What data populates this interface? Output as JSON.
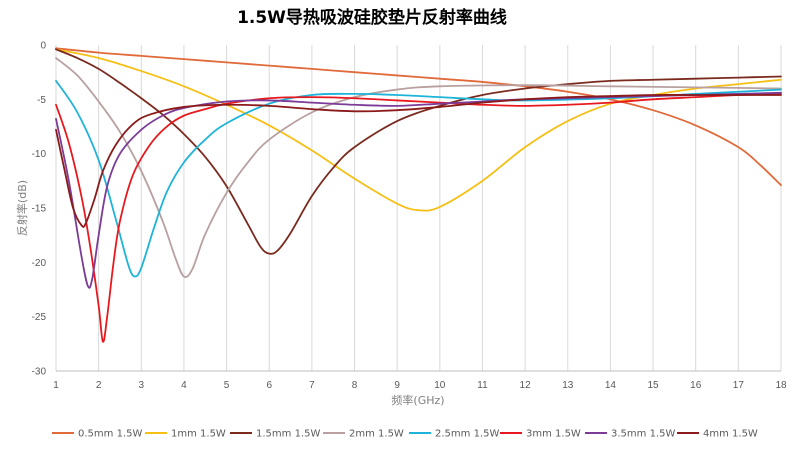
{
  "chart_data": {
    "type": "line",
    "title": "1.5W导热吸波硅胶垫片反射率曲线",
    "xlabel": "频率(GHz)",
    "ylabel": "反射率(dB)",
    "xlim": [
      1,
      18
    ],
    "ylim": [
      -30,
      0
    ],
    "x_ticks": [
      1,
      2,
      3,
      4,
      5,
      6,
      7,
      8,
      9,
      10,
      11,
      12,
      13,
      14,
      15,
      16,
      17,
      18
    ],
    "y_ticks": [
      0,
      -5,
      -10,
      -15,
      -20,
      -25,
      -30
    ],
    "grid": "vertical",
    "legend_position": "bottom",
    "series": [
      {
        "name": "0.5mm 1.5W",
        "color": "#e06a3a",
        "x": [
          1,
          2,
          3,
          4,
          5,
          6,
          7,
          8,
          9,
          10,
          11,
          12,
          13,
          14,
          15,
          16,
          17,
          17.5,
          18
        ],
        "y": [
          -0.3,
          -0.7,
          -1.0,
          -1.3,
          -1.6,
          -1.9,
          -2.2,
          -2.5,
          -2.8,
          -3.1,
          -3.4,
          -3.8,
          -4.3,
          -5.0,
          -6.0,
          -7.4,
          -9.4,
          -11.0,
          -12.9
        ]
      },
      {
        "name": "1mm 1.5W",
        "color": "#f5bf14",
        "x": [
          1,
          2,
          3,
          4,
          5,
          6,
          7,
          8,
          9,
          9.5,
          10,
          11,
          12,
          13,
          14,
          15,
          16,
          17,
          18
        ],
        "y": [
          -0.4,
          -1.2,
          -2.4,
          -3.8,
          -5.5,
          -7.4,
          -9.7,
          -12.3,
          -14.6,
          -15.2,
          -14.9,
          -12.5,
          -9.4,
          -7.0,
          -5.4,
          -4.6,
          -4.0,
          -3.6,
          -3.2
        ]
      },
      {
        "name": "1.5mm 1.5W",
        "color": "#7b2a1e",
        "x": [
          1,
          1.5,
          2,
          2.5,
          3,
          3.5,
          4,
          4.5,
          5,
          5.5,
          5.8,
          6,
          6.2,
          6.5,
          7,
          7.5,
          8,
          9,
          10,
          11,
          12,
          13,
          14,
          15,
          16,
          17,
          18
        ],
        "y": [
          -0.4,
          -1.2,
          -2.2,
          -3.5,
          -4.9,
          -6.4,
          -8.2,
          -10.3,
          -13.0,
          -16.5,
          -18.6,
          -19.2,
          -18.9,
          -17.3,
          -13.9,
          -11.3,
          -9.4,
          -7.0,
          -5.6,
          -4.6,
          -4.0,
          -3.6,
          -3.3,
          -3.2,
          -3.1,
          -3.0,
          -2.9
        ]
      },
      {
        "name": "2mm 1.5W",
        "color": "#b8a0a0",
        "x": [
          1,
          1.5,
          2,
          2.5,
          3,
          3.5,
          3.8,
          4,
          4.2,
          4.5,
          5,
          5.5,
          6,
          7,
          8,
          9,
          10,
          12,
          14,
          16,
          18
        ],
        "y": [
          -1.2,
          -2.8,
          -5.2,
          -8.0,
          -11.6,
          -16.2,
          -19.6,
          -21.3,
          -20.6,
          -17.4,
          -13.6,
          -10.8,
          -8.7,
          -6.2,
          -4.8,
          -4.1,
          -3.8,
          -3.7,
          -3.8,
          -3.9,
          -4.0
        ]
      },
      {
        "name": "2.5mm 1.5W",
        "color": "#1eb4d9",
        "x": [
          1,
          1.5,
          2,
          2.4,
          2.7,
          2.85,
          3,
          3.3,
          3.6,
          4,
          4.5,
          5,
          6,
          7,
          8,
          9,
          10,
          11,
          12,
          14,
          16,
          18
        ],
        "y": [
          -3.3,
          -6.2,
          -10.6,
          -16.0,
          -20.3,
          -21.3,
          -20.5,
          -16.8,
          -13.5,
          -10.8,
          -8.7,
          -7.2,
          -5.4,
          -4.6,
          -4.5,
          -4.6,
          -4.8,
          -5.0,
          -5.1,
          -4.9,
          -4.5,
          -4.1
        ]
      },
      {
        "name": "3mm 1.5W",
        "color": "#e8191e",
        "x": [
          1,
          1.3,
          1.6,
          1.8,
          2.0,
          2.1,
          2.2,
          2.35,
          2.5,
          2.8,
          3.2,
          3.6,
          4,
          4.5,
          5,
          6,
          7,
          8,
          9,
          10,
          11,
          12,
          13,
          14,
          15,
          16,
          17,
          18
        ],
        "y": [
          -5.5,
          -9.0,
          -14.0,
          -18.5,
          -24.0,
          -27.3,
          -25.0,
          -20.0,
          -16.2,
          -12.0,
          -9.2,
          -7.5,
          -6.5,
          -5.9,
          -5.4,
          -4.9,
          -4.8,
          -4.9,
          -5.1,
          -5.3,
          -5.5,
          -5.6,
          -5.5,
          -5.3,
          -5.0,
          -4.8,
          -4.6,
          -4.5
        ]
      },
      {
        "name": "3.5mm 1.5W",
        "color": "#7b3b97",
        "x": [
          1,
          1.3,
          1.6,
          1.75,
          1.85,
          2.0,
          2.2,
          2.5,
          3,
          3.5,
          4,
          5,
          6,
          7,
          8,
          9,
          10,
          11,
          12,
          14,
          16,
          18
        ],
        "y": [
          -6.8,
          -12.5,
          -19.5,
          -22.2,
          -21.5,
          -17.5,
          -13.0,
          -10.0,
          -7.8,
          -6.5,
          -5.8,
          -5.2,
          -5.1,
          -5.3,
          -5.5,
          -5.6,
          -5.4,
          -5.2,
          -5.0,
          -4.8,
          -4.6,
          -4.4
        ]
      },
      {
        "name": "4mm 1.5W",
        "color": "#8b1a1a",
        "x": [
          1,
          1.2,
          1.4,
          1.6,
          1.7,
          1.9,
          2.1,
          2.4,
          2.8,
          3.2,
          4,
          5,
          6,
          7,
          8,
          9,
          10,
          11,
          12,
          13,
          14,
          15,
          16,
          17,
          18
        ],
        "y": [
          -7.8,
          -11.5,
          -15.0,
          -16.6,
          -16.4,
          -14.2,
          -11.6,
          -9.2,
          -7.3,
          -6.4,
          -5.7,
          -5.5,
          -5.6,
          -5.9,
          -6.1,
          -6.0,
          -5.7,
          -5.3,
          -5.0,
          -4.8,
          -4.7,
          -4.6,
          -4.6,
          -4.6,
          -4.6
        ]
      }
    ]
  }
}
